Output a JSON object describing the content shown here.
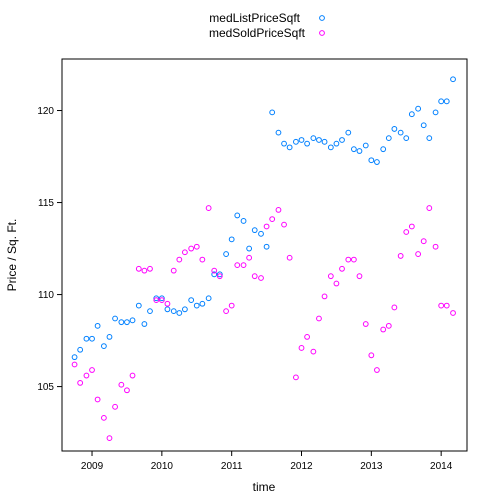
{
  "chart_data": {
    "type": "scatter",
    "title": "",
    "xlabel": "time",
    "ylabel": "Price / Sq. Ft.",
    "xlim": [
      2008.57,
      2014.37
    ],
    "ylim": [
      101.5,
      122.8
    ],
    "x_ticks": [
      2009,
      2010,
      2011,
      2012,
      2013,
      2014
    ],
    "x_tick_labels": [
      "2009",
      "2010",
      "2011",
      "2012",
      "2013",
      "2014"
    ],
    "y_ticks": [
      105,
      110,
      115,
      120
    ],
    "y_tick_labels": [
      "105",
      "110",
      "115",
      "120"
    ],
    "grid": false,
    "legend_position": "top",
    "series": [
      {
        "name": "medListPriceSqft",
        "color": "#0080ff",
        "points": [
          [
            2008.75,
            106.6
          ],
          [
            2008.83,
            107.0
          ],
          [
            2008.92,
            107.6
          ],
          [
            2009.0,
            107.6
          ],
          [
            2009.08,
            108.3
          ],
          [
            2009.17,
            107.2
          ],
          [
            2009.25,
            107.7
          ],
          [
            2009.33,
            108.7
          ],
          [
            2009.42,
            108.5
          ],
          [
            2009.5,
            108.5
          ],
          [
            2009.58,
            108.6
          ],
          [
            2009.67,
            109.4
          ],
          [
            2009.75,
            108.4
          ],
          [
            2009.83,
            109.1
          ],
          [
            2009.92,
            109.8
          ],
          [
            2010.0,
            109.8
          ],
          [
            2010.08,
            109.2
          ],
          [
            2010.17,
            109.1
          ],
          [
            2010.25,
            109.0
          ],
          [
            2010.33,
            109.2
          ],
          [
            2010.42,
            109.7
          ],
          [
            2010.5,
            109.4
          ],
          [
            2010.58,
            109.5
          ],
          [
            2010.67,
            109.8
          ],
          [
            2010.75,
            111.1
          ],
          [
            2010.83,
            111.1
          ],
          [
            2010.92,
            112.2
          ],
          [
            2011.0,
            113.0
          ],
          [
            2011.08,
            114.3
          ],
          [
            2011.17,
            114.0
          ],
          [
            2011.25,
            112.5
          ],
          [
            2011.33,
            113.5
          ],
          [
            2011.42,
            113.3
          ],
          [
            2011.5,
            112.6
          ],
          [
            2011.58,
            119.9
          ],
          [
            2011.67,
            118.8
          ],
          [
            2011.75,
            118.2
          ],
          [
            2011.83,
            118.0
          ],
          [
            2011.92,
            118.3
          ],
          [
            2012.0,
            118.4
          ],
          [
            2012.08,
            118.2
          ],
          [
            2012.17,
            118.5
          ],
          [
            2012.25,
            118.4
          ],
          [
            2012.33,
            118.3
          ],
          [
            2012.42,
            118.0
          ],
          [
            2012.5,
            118.2
          ],
          [
            2012.58,
            118.4
          ],
          [
            2012.67,
            118.8
          ],
          [
            2012.75,
            117.9
          ],
          [
            2012.83,
            117.8
          ],
          [
            2012.92,
            118.1
          ],
          [
            2013.0,
            117.3
          ],
          [
            2013.08,
            117.2
          ],
          [
            2013.17,
            117.9
          ],
          [
            2013.25,
            118.5
          ],
          [
            2013.33,
            119.0
          ],
          [
            2013.42,
            118.8
          ],
          [
            2013.5,
            118.5
          ],
          [
            2013.58,
            119.8
          ],
          [
            2013.67,
            120.1
          ],
          [
            2013.75,
            119.2
          ],
          [
            2013.83,
            118.5
          ],
          [
            2013.92,
            119.9
          ],
          [
            2014.0,
            120.5
          ],
          [
            2014.08,
            120.5
          ],
          [
            2014.17,
            121.7
          ]
        ]
      },
      {
        "name": "medSoldPriceSqft",
        "color": "#ff00ff",
        "points": [
          [
            2008.75,
            106.2
          ],
          [
            2008.83,
            105.2
          ],
          [
            2008.92,
            105.6
          ],
          [
            2009.0,
            105.9
          ],
          [
            2009.08,
            104.3
          ],
          [
            2009.17,
            103.3
          ],
          [
            2009.25,
            102.2
          ],
          [
            2009.33,
            103.9
          ],
          [
            2009.42,
            105.1
          ],
          [
            2009.5,
            104.8
          ],
          [
            2009.58,
            105.6
          ],
          [
            2009.67,
            111.4
          ],
          [
            2009.75,
            111.3
          ],
          [
            2009.83,
            111.4
          ],
          [
            2009.92,
            109.7
          ],
          [
            2010.0,
            109.7
          ],
          [
            2010.08,
            109.5
          ],
          [
            2010.17,
            111.3
          ],
          [
            2010.25,
            111.9
          ],
          [
            2010.33,
            112.3
          ],
          [
            2010.42,
            112.5
          ],
          [
            2010.5,
            112.6
          ],
          [
            2010.58,
            111.9
          ],
          [
            2010.67,
            114.7
          ],
          [
            2010.75,
            111.3
          ],
          [
            2010.83,
            111.0
          ],
          [
            2010.92,
            109.1
          ],
          [
            2011.0,
            109.4
          ],
          [
            2011.08,
            111.6
          ],
          [
            2011.17,
            111.6
          ],
          [
            2011.25,
            112.0
          ],
          [
            2011.33,
            111.0
          ],
          [
            2011.42,
            110.9
          ],
          [
            2011.5,
            113.7
          ],
          [
            2011.58,
            114.1
          ],
          [
            2011.67,
            114.6
          ],
          [
            2011.75,
            113.8
          ],
          [
            2011.83,
            112.0
          ],
          [
            2011.92,
            105.5
          ],
          [
            2012.0,
            107.1
          ],
          [
            2012.08,
            107.7
          ],
          [
            2012.17,
            106.9
          ],
          [
            2012.25,
            108.7
          ],
          [
            2012.33,
            109.9
          ],
          [
            2012.42,
            111.0
          ],
          [
            2012.5,
            110.6
          ],
          [
            2012.58,
            111.4
          ],
          [
            2012.67,
            111.9
          ],
          [
            2012.75,
            111.9
          ],
          [
            2012.83,
            111.0
          ],
          [
            2012.92,
            108.4
          ],
          [
            2013.0,
            106.7
          ],
          [
            2013.08,
            105.9
          ],
          [
            2013.17,
            108.1
          ],
          [
            2013.25,
            108.3
          ],
          [
            2013.33,
            109.3
          ],
          [
            2013.42,
            112.1
          ],
          [
            2013.5,
            113.4
          ],
          [
            2013.58,
            113.7
          ],
          [
            2013.67,
            112.2
          ],
          [
            2013.75,
            112.9
          ],
          [
            2013.83,
            114.7
          ],
          [
            2013.92,
            112.6
          ],
          [
            2014.0,
            109.4
          ],
          [
            2014.08,
            109.4
          ],
          [
            2014.17,
            109.0
          ]
        ]
      }
    ]
  }
}
